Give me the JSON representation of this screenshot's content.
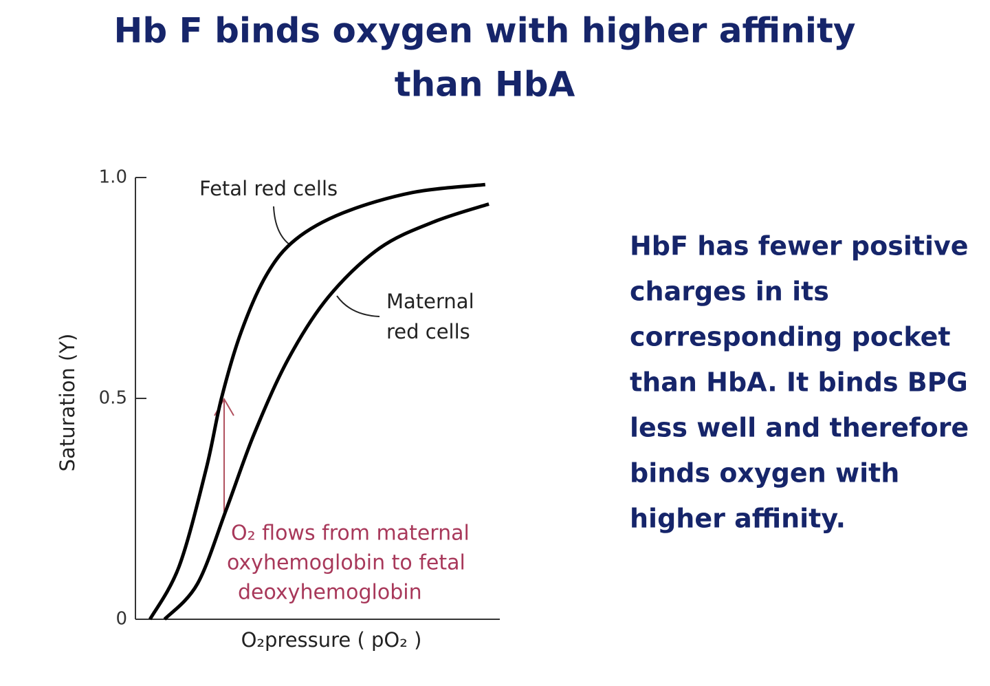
{
  "title": [
    "Hb F binds oxygen with higher affinity",
    "than HbA"
  ],
  "chart_data": {
    "type": "line",
    "xlabel": "O₂pressure ( pO₂ )",
    "ylabel": "Saturation  (Y)",
    "xlim": [
      0,
      100
    ],
    "ylim": [
      0,
      1
    ],
    "yticks": [
      0,
      0.5,
      {
        "value": 1,
        "label": "1.0"
      }
    ],
    "series": [
      {
        "name": "Fetal red cells",
        "color": "#000000",
        "x": [
          4,
          12,
          19.4,
          23.6,
          29,
          36,
          44,
          57,
          76,
          96
        ],
        "values": [
          0,
          0.12,
          0.34,
          0.5,
          0.65,
          0.78,
          0.86,
          0.92,
          0.966,
          0.984
        ]
      },
      {
        "name": "Maternal red cells",
        "color": "#000000",
        "name_lines": [
          "Maternal",
          "red cells"
        ],
        "x": [
          8,
          17,
          25,
          32.6,
          42,
          53,
          67,
          82,
          97
        ],
        "values": [
          0,
          0.08,
          0.25,
          0.42,
          0.59,
          0.73,
          0.84,
          0.9,
          0.94
        ]
      }
    ],
    "annotation": [
      "O₂ flows from maternal",
      "oxyhemoglobin to fetal",
      "deoxyhemoglobin"
    ]
  },
  "body": [
    "HbF has fewer positive",
    "charges in its",
    "corresponding pocket",
    "than HbA. It binds BPG",
    "less well and therefore",
    "binds oxygen with",
    "higher affinity."
  ]
}
